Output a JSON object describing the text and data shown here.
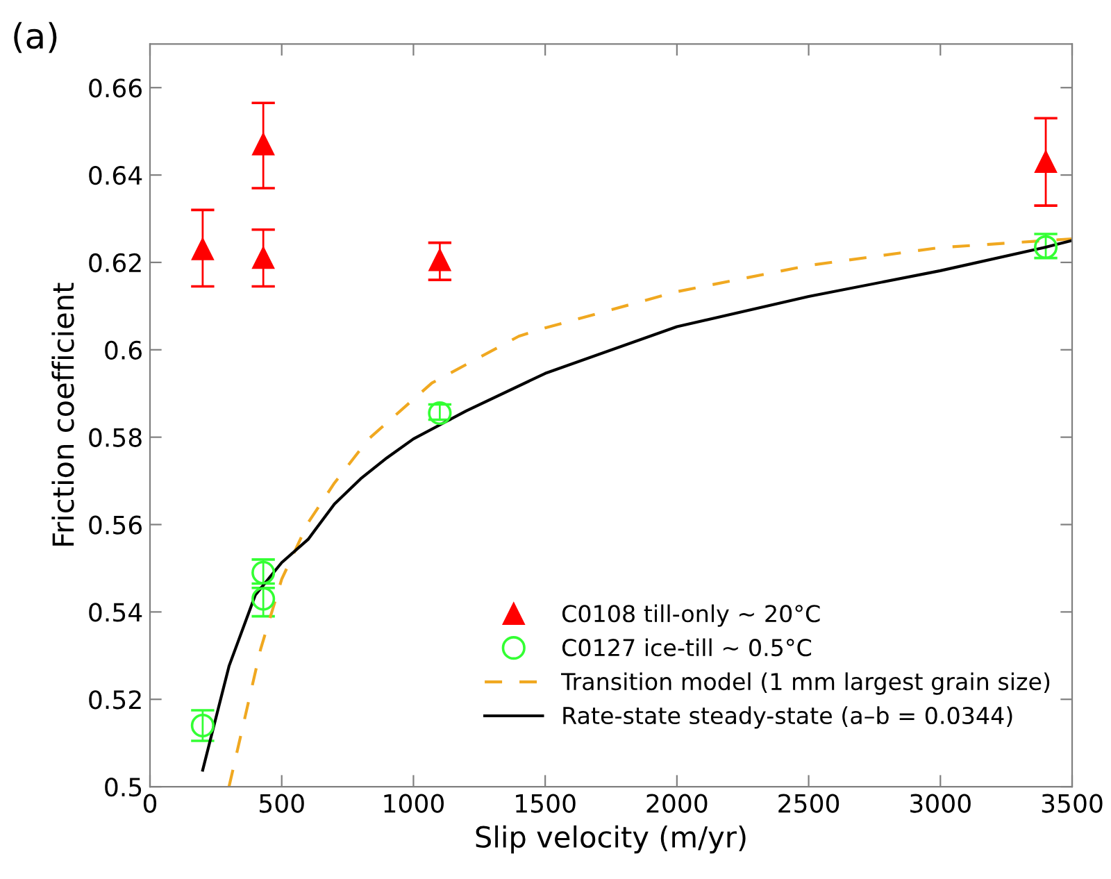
{
  "chart_data": {
    "type": "scatter",
    "title": "(a)",
    "xlabel": "Slip velocity (m/yr)",
    "ylabel": "Friction coefficient",
    "xlim": [
      0,
      3500
    ],
    "xticks": [
      0,
      500,
      1000,
      1500,
      2000,
      2500,
      3000,
      3500
    ],
    "ylim": [
      0.5,
      0.67
    ],
    "yticks": [
      0.5,
      0.52,
      0.54,
      0.56,
      0.58,
      {
        "value": 0.6,
        "label": "0.6"
      },
      0.62,
      0.64,
      0.66
    ],
    "grid": false,
    "legend": "lower right",
    "series": [
      {
        "name": "C0108 till-only ~ 20°C",
        "color": "#ff0000",
        "marker": "triangle",
        "x": [
          200,
          430,
          430,
          1100,
          3400
        ],
        "values": [
          0.623,
          0.647,
          0.621,
          0.6205,
          0.643
        ],
        "errors": [
          [
            0.6145,
            0.632
          ],
          [
            0.637,
            0.6565
          ],
          [
            0.6145,
            0.6275
          ],
          [
            0.616,
            0.6245
          ],
          [
            0.633,
            0.653
          ]
        ]
      },
      {
        "name": "C0127 ice-till ~ 0.5°C",
        "color": "#33ff33",
        "marker": "circle",
        "x": [
          200,
          430,
          430,
          1100,
          3400
        ],
        "values": [
          0.514,
          0.549,
          0.543,
          0.5855,
          0.6235
        ],
        "errors": [
          [
            0.5105,
            0.5175
          ],
          [
            0.5455,
            0.552
          ],
          [
            0.539,
            0.5465
          ],
          [
            0.584,
            0.5875
          ],
          [
            0.621,
            0.6265
          ]
        ]
      },
      {
        "name": "Transition model (1 mm largest grain size)",
        "type": "line",
        "color": "#f0a820",
        "line_style": "dashed",
        "marker": "none",
        "x": [
          300,
          420,
          500,
          600,
          700,
          830,
          1070,
          1400,
          1500,
          2000,
          2500,
          3000,
          3500
        ],
        "values": [
          0.5,
          0.5315,
          0.5475,
          0.5604,
          0.5695,
          0.5796,
          0.5924,
          0.6031,
          0.605,
          0.6133,
          0.6193,
          0.6234,
          0.6254
        ]
      },
      {
        "name": "Rate-state steady-state (a–b = 0.0344)",
        "type": "line",
        "color": "#000000",
        "line_style": "solid",
        "marker": "none",
        "x": [
          200,
          300,
          400,
          500,
          600,
          700,
          800,
          900,
          1000,
          1100,
          1200,
          1500,
          2000,
          2500,
          3000,
          3400,
          3500
        ],
        "values": [
          0.5038,
          0.5276,
          0.5439,
          0.5513,
          0.5566,
          0.5647,
          0.5705,
          0.5753,
          0.5796,
          0.5828,
          0.586,
          0.5946,
          0.6053,
          0.6122,
          0.6181,
          0.6235,
          0.625
        ]
      }
    ]
  }
}
